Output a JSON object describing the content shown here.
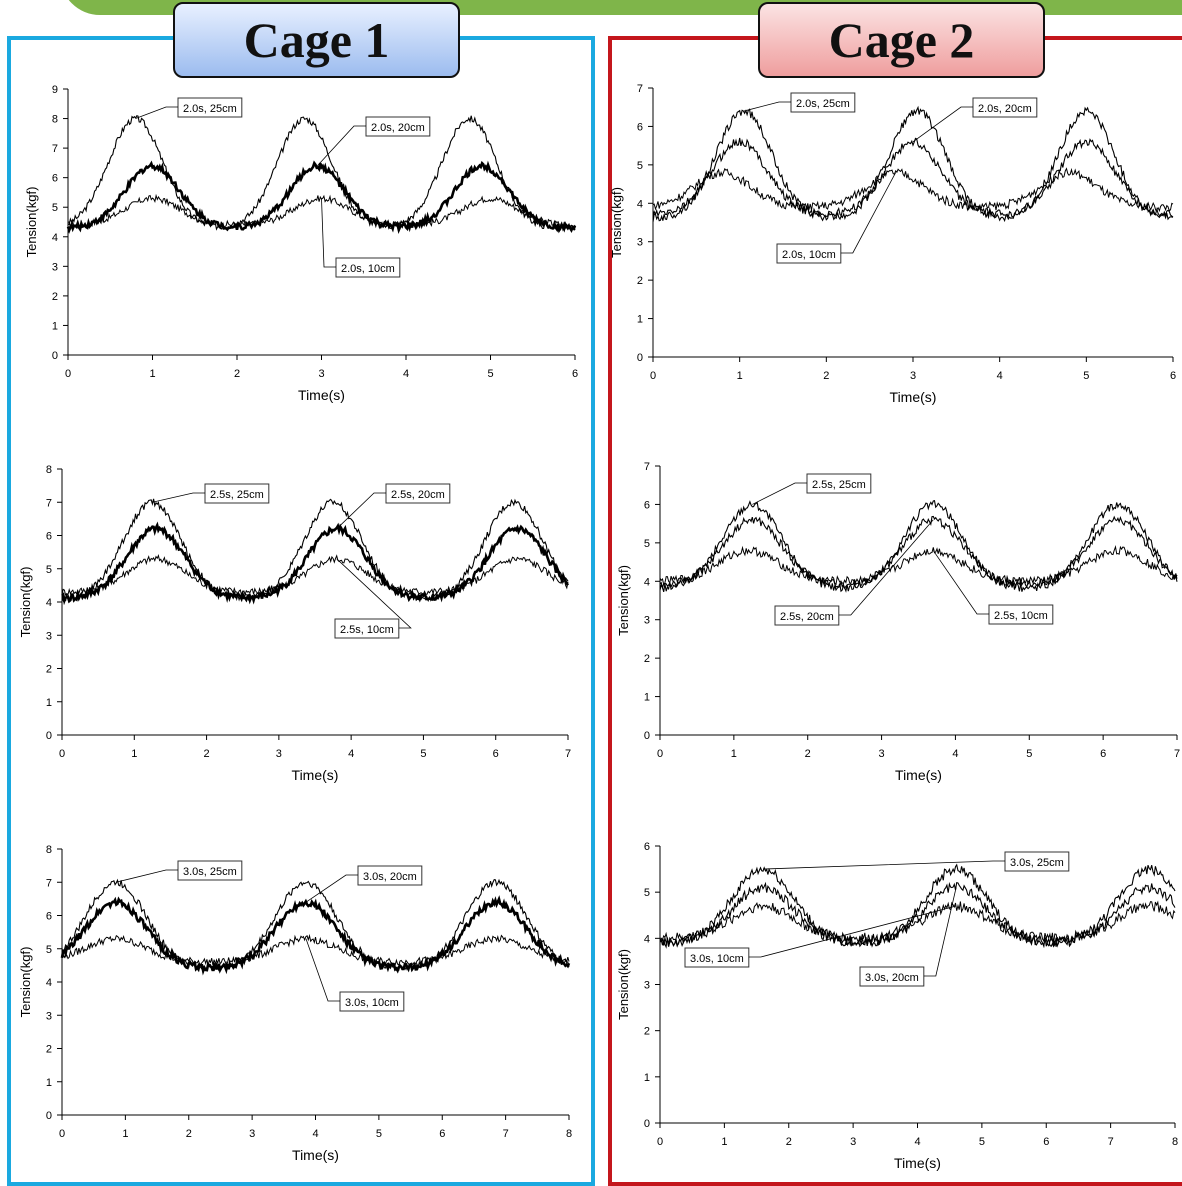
{
  "cages": [
    {
      "title": "Cage 1",
      "border_color": "#1aa9e0",
      "title_bg": "#9cbcef"
    },
    {
      "title": "Cage 2",
      "border_color": "#c4161c",
      "title_bg": "#ef9e9e"
    }
  ],
  "chart_data": [
    {
      "panel": "Cage 1",
      "type": "line",
      "xlabel": "Time(s)",
      "ylabel": "Tension(kgf)",
      "xlim": [
        0,
        6
      ],
      "ylim": [
        0,
        9
      ],
      "xticks": [
        "0",
        "1",
        "2",
        "3",
        "4",
        "5",
        "6"
      ],
      "yticks": [
        "0",
        "1",
        "2",
        "3",
        "4",
        "5",
        "6",
        "7",
        "8",
        "9"
      ],
      "period": 2.0,
      "series": [
        {
          "name": "2.0s, 25cm",
          "peak_times": [
            0.8,
            2.8,
            4.75
          ],
          "min": 4.3,
          "max": 8.0
        },
        {
          "name": "2.0s, 20cm",
          "peak_times": [
            1.0,
            2.95,
            4.9
          ],
          "min": 4.3,
          "max": 6.4
        },
        {
          "name": "2.0s, 10cm",
          "peak_times": [
            1.0,
            3.0,
            5.0
          ],
          "min": 4.4,
          "max": 5.3
        }
      ]
    },
    {
      "panel": "Cage 1",
      "type": "line",
      "xlabel": "Time(s)",
      "ylabel": "Tension(kgf)",
      "xlim": [
        0,
        7
      ],
      "ylim": [
        0,
        8
      ],
      "xticks": [
        "0",
        "1",
        "2",
        "3",
        "4",
        "5",
        "6",
        "7"
      ],
      "yticks": [
        "0",
        "1",
        "2",
        "3",
        "4",
        "5",
        "6",
        "7",
        "8"
      ],
      "period": 2.5,
      "series": [
        {
          "name": "2.5s, 25cm",
          "peak_times": [
            1.25,
            3.75,
            6.25
          ],
          "min": 4.1,
          "max": 7.0
        },
        {
          "name": "2.5s, 20cm",
          "peak_times": [
            1.3,
            3.8,
            6.3
          ],
          "min": 4.1,
          "max": 6.2
        },
        {
          "name": "2.5s, 10cm",
          "peak_times": [
            1.3,
            3.8,
            6.3
          ],
          "min": 4.3,
          "max": 5.3
        }
      ]
    },
    {
      "panel": "Cage 1",
      "type": "line",
      "xlabel": "Time(s)",
      "ylabel": "Tension(kgf)",
      "xlim": [
        0,
        8
      ],
      "ylim": [
        0,
        8
      ],
      "xticks": [
        "0",
        "1",
        "2",
        "3",
        "4",
        "5",
        "6",
        "7",
        "8"
      ],
      "yticks": [
        "0",
        "1",
        "2",
        "3",
        "4",
        "5",
        "6",
        "7",
        "8"
      ],
      "period": 3.0,
      "series": [
        {
          "name": "3.0s, 25cm",
          "peak_times": [
            0.85,
            3.85,
            6.85
          ],
          "min": 4.4,
          "max": 7.0
        },
        {
          "name": "3.0s, 20cm",
          "peak_times": [
            0.85,
            3.85,
            6.85
          ],
          "min": 4.4,
          "max": 6.4
        },
        {
          "name": "3.0s, 10cm",
          "peak_times": [
            0.85,
            3.85,
            6.85
          ],
          "min": 4.6,
          "max": 5.3
        }
      ]
    },
    {
      "panel": "Cage 2",
      "type": "line",
      "xlabel": "Time(s)",
      "ylabel": "Tension(kgf)",
      "xlim": [
        0,
        6
      ],
      "ylim": [
        0,
        7
      ],
      "xticks": [
        "0",
        "1",
        "2",
        "3",
        "4",
        "5",
        "6"
      ],
      "yticks": [
        "0",
        "1",
        "2",
        "3",
        "4",
        "5",
        "6",
        "7"
      ],
      "period": 2.0,
      "series": [
        {
          "name": "2.0s, 25cm",
          "peak_times": [
            1.05,
            3.05,
            5.0
          ],
          "min": 3.6,
          "max": 6.4
        },
        {
          "name": "2.0s, 20cm",
          "peak_times": [
            1.0,
            3.0,
            5.0
          ],
          "min": 3.7,
          "max": 5.6
        },
        {
          "name": "2.0s, 10cm",
          "peak_times": [
            0.8,
            2.8,
            4.8
          ],
          "min": 3.9,
          "max": 4.8
        }
      ]
    },
    {
      "panel": "Cage 2",
      "type": "line",
      "xlabel": "Time(s)",
      "ylabel": "Tension(kgf)",
      "xlim": [
        0,
        7
      ],
      "ylim": [
        0,
        7
      ],
      "xticks": [
        "0",
        "1",
        "2",
        "3",
        "4",
        "5",
        "6",
        "7"
      ],
      "yticks": [
        "0",
        "1",
        "2",
        "3",
        "4",
        "5",
        "6",
        "7"
      ],
      "period": 2.5,
      "series": [
        {
          "name": "2.5s, 25cm",
          "peak_times": [
            1.25,
            3.7,
            6.2
          ],
          "min": 3.8,
          "max": 6.0
        },
        {
          "name": "2.5s, 20cm",
          "peak_times": [
            1.25,
            3.7,
            6.2
          ],
          "min": 3.9,
          "max": 5.6
        },
        {
          "name": "2.5s, 10cm",
          "peak_times": [
            1.2,
            3.7,
            6.2
          ],
          "min": 4.0,
          "max": 4.8
        }
      ]
    },
    {
      "panel": "Cage 2",
      "type": "line",
      "xlabel": "Time(s)",
      "ylabel": "Tension(kgf)",
      "xlim": [
        0,
        8
      ],
      "ylim": [
        0,
        6
      ],
      "xticks": [
        "0",
        "1",
        "2",
        "3",
        "4",
        "5",
        "6",
        "7",
        "8"
      ],
      "yticks": [
        "0",
        "1",
        "2",
        "3",
        "4",
        "5",
        "6"
      ],
      "period": 3.0,
      "series": [
        {
          "name": "3.0s, 25cm",
          "peak_times": [
            1.6,
            4.6,
            7.6
          ],
          "min": 3.9,
          "max": 5.5
        },
        {
          "name": "3.0s, 20cm",
          "peak_times": [
            1.6,
            4.6,
            7.6
          ],
          "min": 3.9,
          "max": 5.1
        },
        {
          "name": "3.0s, 10cm",
          "peak_times": [
            1.6,
            4.6,
            7.6
          ],
          "min": 4.0,
          "max": 4.7
        }
      ]
    }
  ]
}
